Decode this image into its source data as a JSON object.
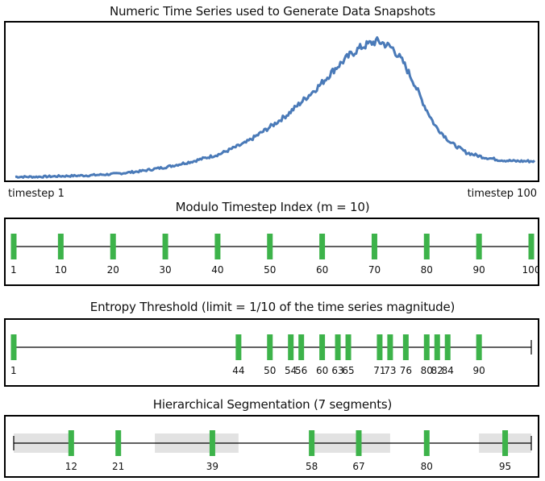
{
  "timeseries": {
    "title": "Numeric Time Series used to Generate Data Snapshots",
    "start_label": "timestep 1",
    "end_label": "timestep 100",
    "line_color": "#4a7ab8",
    "chart_data": {
      "type": "line",
      "x_range": [
        1,
        100
      ],
      "y_range": [
        0,
        1
      ],
      "x": [
        1,
        5,
        10,
        15,
        20,
        25,
        30,
        35,
        40,
        45,
        50,
        53,
        56,
        59,
        62,
        65,
        67,
        69,
        70,
        71,
        73,
        75,
        77,
        79,
        81,
        84,
        87,
        90,
        93,
        96,
        100
      ],
      "y": [
        0.02,
        0.02,
        0.025,
        0.03,
        0.04,
        0.06,
        0.09,
        0.13,
        0.18,
        0.26,
        0.38,
        0.46,
        0.56,
        0.66,
        0.78,
        0.88,
        0.93,
        0.96,
        0.97,
        0.96,
        0.92,
        0.82,
        0.68,
        0.52,
        0.38,
        0.26,
        0.19,
        0.16,
        0.14,
        0.13,
        0.13
      ]
    }
  },
  "modulo": {
    "title": "Modulo Timestep Index (m = 10)",
    "marker_color": "#3db34a",
    "ticks": [
      1,
      10,
      20,
      30,
      40,
      50,
      60,
      70,
      80,
      90,
      100
    ]
  },
  "entropy": {
    "title": "Entropy Threshold (limit = 1/10 of the time series magnitude)",
    "marker_color": "#3db34a",
    "ticks": [
      1,
      44,
      50,
      54,
      56,
      60,
      63,
      65,
      71,
      73,
      76,
      80,
      82,
      84,
      90
    ]
  },
  "hierarchical": {
    "title": "Hierarchical Segmentation (7 segments)",
    "marker_color": "#3db34a",
    "segment_color": "#e2e2e2",
    "ticks": [
      12,
      21,
      39,
      58,
      67,
      80,
      95
    ],
    "shaded_segments": [
      [
        1,
        12
      ],
      [
        28,
        44
      ],
      [
        58,
        73
      ],
      [
        90,
        100
      ]
    ]
  }
}
